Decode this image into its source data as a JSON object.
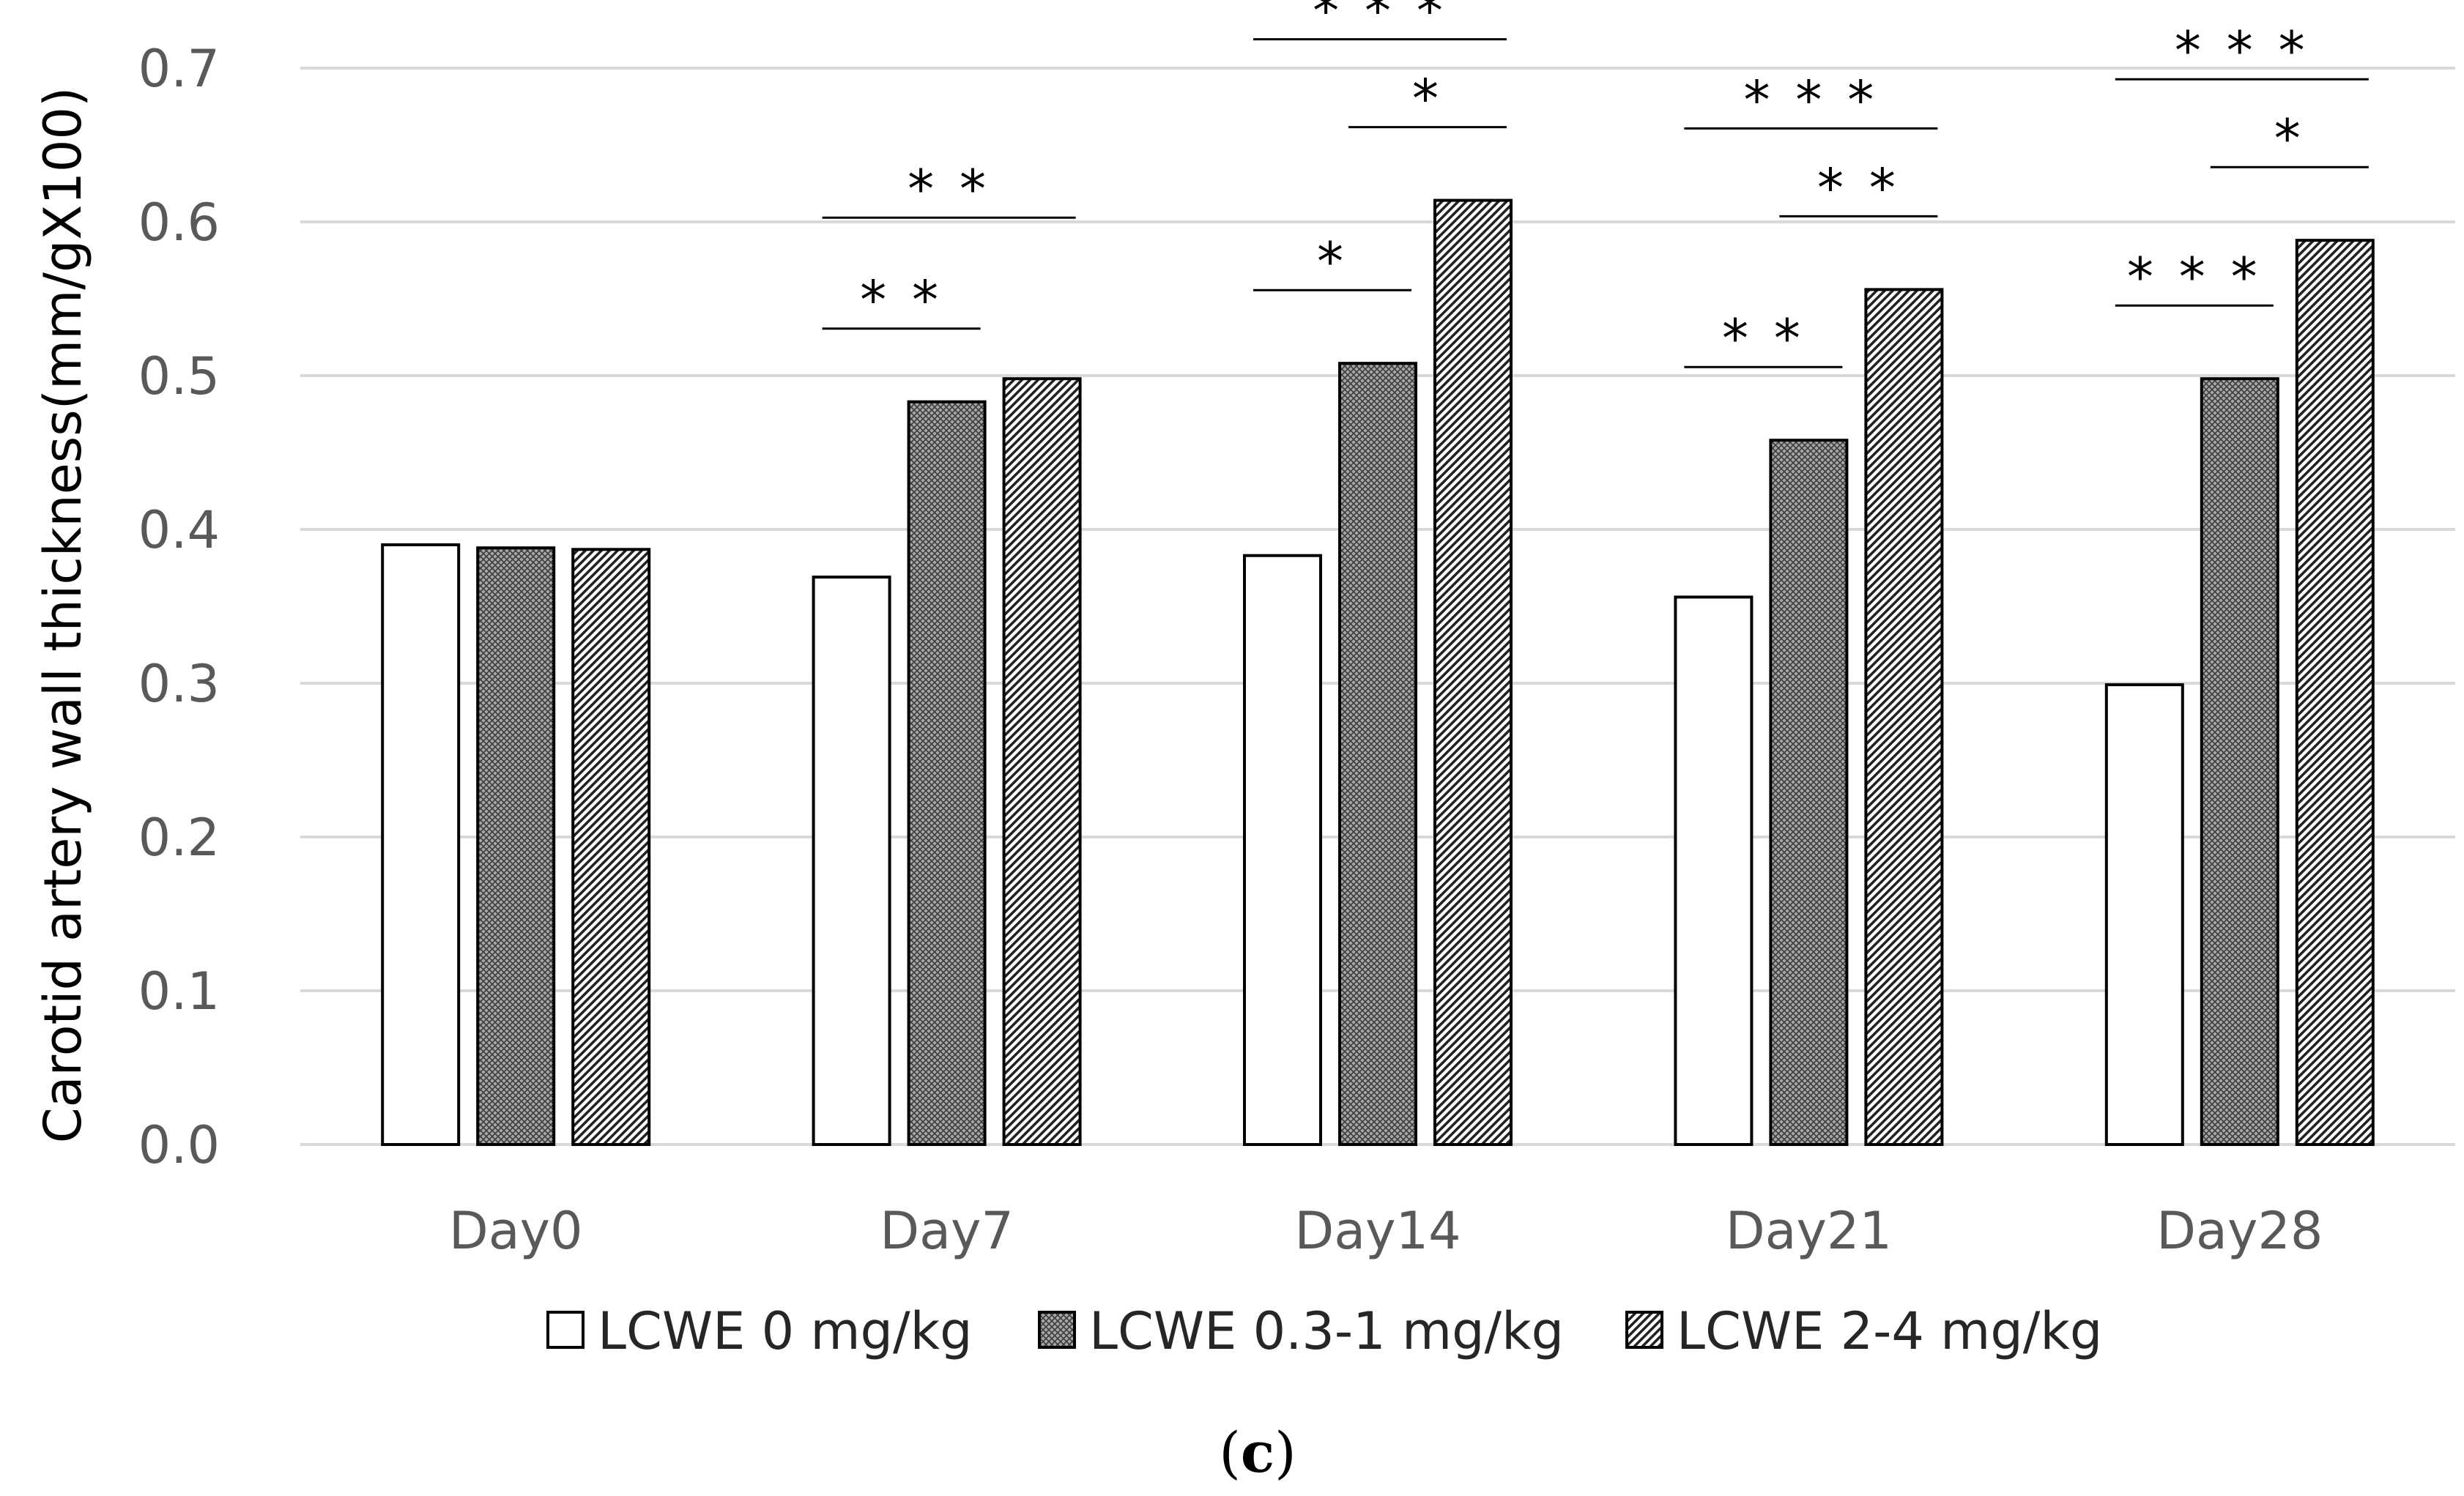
{
  "chart_data": {
    "type": "bar",
    "ylabel": "Carotid artery wall thickness(mm/gX100)",
    "xlabel": "",
    "ylim": [
      0,
      0.7
    ],
    "yticks": [
      "0.0",
      "0.1",
      "0.2",
      "0.3",
      "0.4",
      "0.5",
      "0.6",
      "0.7"
    ],
    "grid": true,
    "legend_position": "bottom",
    "categories": [
      "Day0",
      "Day7",
      "Day14",
      "Day21",
      "Day28"
    ],
    "series": [
      {
        "name": "LCWE 0 mg/kg",
        "fill": "white",
        "values": [
          0.39,
          0.369,
          0.383,
          0.356,
          0.299
        ]
      },
      {
        "name": "LCWE 0.3-1 mg/kg",
        "fill": "crosshatch",
        "values": [
          0.388,
          0.483,
          0.508,
          0.458,
          0.498
        ]
      },
      {
        "name": "LCWE 2-4 mg/kg",
        "fill": "diagonal",
        "values": [
          0.387,
          0.498,
          0.614,
          0.556,
          0.588
        ]
      }
    ],
    "significance": [
      {
        "category": "Day7",
        "from": 0,
        "to": 1,
        "label": "* *"
      },
      {
        "category": "Day7",
        "from": 0,
        "to": 2,
        "label": "* *"
      },
      {
        "category": "Day14",
        "from": 0,
        "to": 1,
        "label": "*"
      },
      {
        "category": "Day14",
        "from": 1,
        "to": 2,
        "label": "*"
      },
      {
        "category": "Day14",
        "from": 0,
        "to": 2,
        "label": "* * *"
      },
      {
        "category": "Day21",
        "from": 0,
        "to": 1,
        "label": "* *"
      },
      {
        "category": "Day21",
        "from": 1,
        "to": 2,
        "label": "* *"
      },
      {
        "category": "Day21",
        "from": 0,
        "to": 2,
        "label": "* * *"
      },
      {
        "category": "Day28",
        "from": 0,
        "to": 1,
        "label": "* * *"
      },
      {
        "category": "Day28",
        "from": 1,
        "to": 2,
        "label": "*"
      },
      {
        "category": "Day28",
        "from": 0,
        "to": 2,
        "label": "* * *"
      }
    ]
  },
  "caption": {
    "open": "(",
    "letter": "c",
    "close": ")"
  },
  "colors": {
    "grid": "#d9d9d9",
    "bar_stroke": "#000000",
    "tick_text": "#595959"
  }
}
